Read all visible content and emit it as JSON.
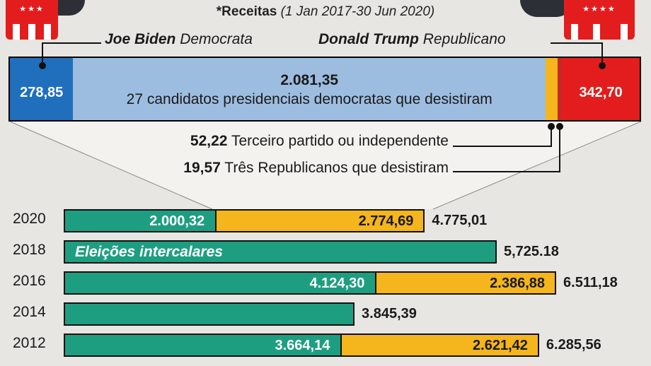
{
  "header": {
    "title_bold": "*Receitas",
    "title_period": "(1 Jan 2017-30 Jun 2020)"
  },
  "candidates": {
    "biden_name": "Joe Biden",
    "biden_party": "Democrata",
    "trump_name": "Donald Trump",
    "trump_party": "Republicano"
  },
  "logos": {
    "dem_stars": "★★★",
    "rep_stars": "★★★★"
  },
  "colors": {
    "democrat_blue": "#1f6fbd",
    "dropout_light_blue": "#9dbde0",
    "republican_red": "#e31d1d",
    "third_party_yellow": "#f4b51d",
    "bar_green": "#1e9e80",
    "bar_orange": "#f4b51d"
  },
  "chart_data": [
    {
      "type": "bar",
      "orientation": "horizontal-stacked",
      "segments": [
        {
          "key": "biden",
          "label": "Joe Biden Democrata",
          "value": 278.85,
          "display": "278,85"
        },
        {
          "key": "dropout",
          "label": "27  candidatos presidenciais democratas que desistiram",
          "value": 2081.35,
          "display": "2.081,35"
        },
        {
          "key": "third",
          "label": "Terceiro partido ou independente",
          "value": 52.22,
          "display": "52,22"
        },
        {
          "key": "threerep",
          "label": "Três Republicanos que desistiram",
          "value": 19.57,
          "display": "19,57"
        },
        {
          "key": "trump",
          "label": "Donald Trump Republicano",
          "value": 342.7,
          "display": "342,70"
        }
      ]
    },
    {
      "type": "bar",
      "orientation": "horizontal-stacked",
      "rows": [
        {
          "year": "2020",
          "green": 2000.32,
          "green_display": "2.000,32",
          "orange": 2774.69,
          "orange_display": "2.774,69",
          "total": 4775.01,
          "total_display": "4.775,01",
          "note": ""
        },
        {
          "year": "2018",
          "green": 5725.18,
          "green_display": "",
          "orange": 0,
          "orange_display": "",
          "total": 5725.18,
          "total_display": "5,725.18",
          "note": "Eleições intercalares"
        },
        {
          "year": "2016",
          "green": 4124.3,
          "green_display": "4.124,30",
          "orange": 2386.88,
          "orange_display": "2.386,88",
          "total": 6511.18,
          "total_display": "6.511,18",
          "note": ""
        },
        {
          "year": "2014",
          "green": 3845.39,
          "green_display": "",
          "orange": 0,
          "orange_display": "",
          "total": 3845.39,
          "total_display": "3.845,39",
          "note": ""
        },
        {
          "year": "2012",
          "green": 3664.14,
          "green_display": "3.664,14",
          "orange": 2621.42,
          "orange_display": "2.621,42",
          "total": 6285.56,
          "total_display": "6.285,56",
          "note": ""
        }
      ]
    }
  ]
}
